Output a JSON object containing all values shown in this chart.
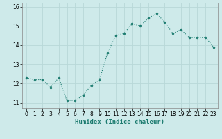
{
  "x": [
    0,
    1,
    2,
    3,
    4,
    5,
    6,
    7,
    8,
    9,
    10,
    11,
    12,
    13,
    14,
    15,
    16,
    17,
    18,
    19,
    20,
    21,
    22,
    23
  ],
  "y": [
    12.3,
    12.2,
    12.2,
    11.8,
    12.3,
    11.1,
    11.1,
    11.4,
    11.9,
    12.2,
    13.6,
    14.5,
    14.6,
    15.1,
    15.0,
    15.4,
    15.65,
    15.2,
    14.6,
    14.8,
    14.4,
    14.4,
    14.4,
    13.9
  ],
  "line_color": "#1a7a6e",
  "marker": "o",
  "marker_size": 2.0,
  "bg_color": "#ceeaea",
  "grid_color": "#b8d8d8",
  "xlabel": "Humidex (Indice chaleur)",
  "ylim": [
    10.7,
    16.2
  ],
  "xlim": [
    -0.5,
    23.5
  ],
  "yticks": [
    11,
    12,
    13,
    14,
    15,
    16
  ],
  "xticks": [
    0,
    1,
    2,
    3,
    4,
    5,
    6,
    7,
    8,
    9,
    10,
    11,
    12,
    13,
    14,
    15,
    16,
    17,
    18,
    19,
    20,
    21,
    22,
    23
  ],
  "tick_fontsize": 5.5,
  "xlabel_fontsize": 6.5,
  "line_width": 0.8
}
